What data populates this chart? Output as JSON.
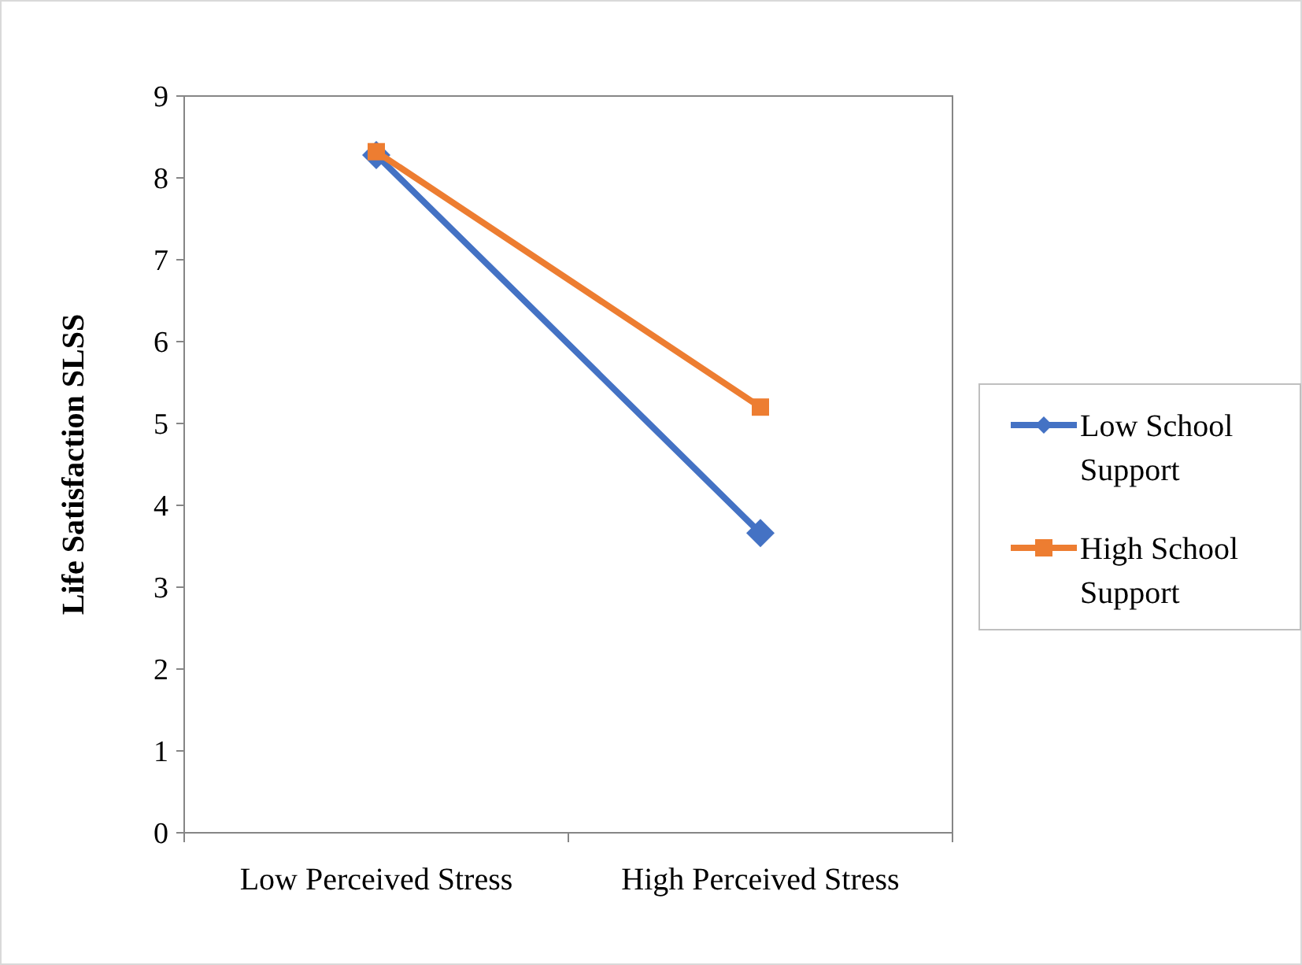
{
  "chart_data": {
    "type": "line",
    "ylabel": "Life Satisfaction SLSS",
    "categories": [
      "Low Perceived Stress",
      "High Perceived Stress"
    ],
    "series": [
      {
        "name": "Low School Support",
        "color": "#4472c4",
        "values": [
          8.28,
          3.66
        ],
        "marker": "diamond"
      },
      {
        "name": "High School Support",
        "color": "#ed7d31",
        "values": [
          8.32,
          5.2
        ],
        "marker": "square"
      }
    ],
    "ylim": [
      0,
      9
    ],
    "yticks": [
      0,
      1,
      2,
      3,
      4,
      5,
      6,
      7,
      8,
      9
    ],
    "grid": false,
    "legend": "right",
    "line_style": "solid"
  }
}
